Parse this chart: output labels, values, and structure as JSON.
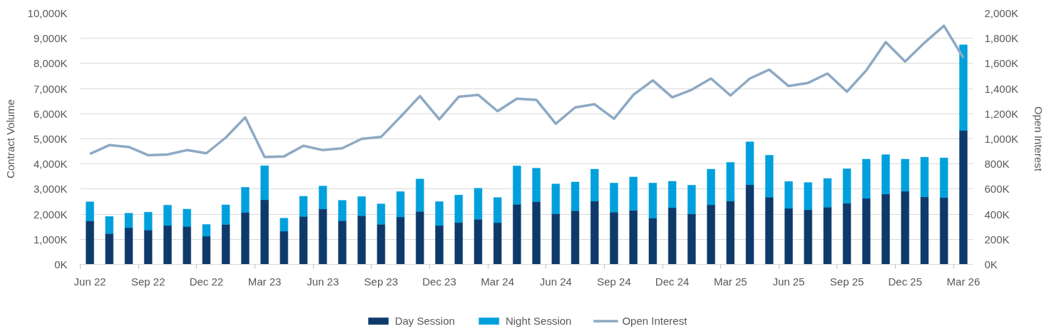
{
  "chart_data": {
    "type": "bar",
    "stacked": true,
    "categories": [
      "Jun 22",
      null,
      null,
      "Sep 22",
      null,
      null,
      "Dec 22",
      null,
      null,
      "Mar 23",
      null,
      null,
      "Jun 23",
      null,
      null,
      "Sep 23",
      null,
      null,
      "Dec 23",
      null,
      null,
      "Mar 24",
      null,
      null,
      "Jun 24",
      null,
      null,
      "Sep 24",
      null,
      null,
      "Dec 24",
      null,
      null,
      "Mar 25",
      null,
      null,
      "Jun 25",
      null,
      null,
      "Sep 25",
      null,
      null,
      "Dec 25",
      null,
      null,
      "Mar 26"
    ],
    "ylabel": "Contract Volume",
    "y2label": "Open Interest",
    "ylim": [
      0,
      10000
    ],
    "yticks": [
      {
        "value": 0,
        "label": "0K"
      },
      {
        "value": 1000,
        "label": "1,000K"
      },
      {
        "value": 2000,
        "label": "2,000K"
      },
      {
        "value": 3000,
        "label": "3,000K"
      },
      {
        "value": 4000,
        "label": "4,000K"
      },
      {
        "value": 5000,
        "label": "5,000K"
      },
      {
        "value": 6000,
        "label": "6,000K"
      },
      {
        "value": 7000,
        "label": "7,000K"
      },
      {
        "value": 8000,
        "label": "8,000K"
      },
      {
        "value": 9000,
        "label": "9,000K"
      },
      {
        "value": 10000,
        "label": "10,000K"
      }
    ],
    "y2lim": [
      0,
      2000
    ],
    "y2ticks": [
      {
        "value": 0,
        "label": "0K"
      },
      {
        "value": 200,
        "label": "200K"
      },
      {
        "value": 400,
        "label": "400K"
      },
      {
        "value": 600,
        "label": "600K"
      },
      {
        "value": 800,
        "label": "800K"
      },
      {
        "value": 1000,
        "label": "1,000K"
      },
      {
        "value": 1200,
        "label": "1,200K"
      },
      {
        "value": 1400,
        "label": "1,400K"
      },
      {
        "value": 1600,
        "label": "1,600K"
      },
      {
        "value": 1800,
        "label": "1,800K"
      },
      {
        "value": 2000,
        "label": "2,000K"
      }
    ],
    "series": [
      {
        "name": "Day Session",
        "color": "#0e3a6b",
        "values": [
          1730,
          1230,
          1460,
          1370,
          1550,
          1510,
          1120,
          1590,
          2070,
          2570,
          1320,
          1910,
          2210,
          1740,
          1940,
          1600,
          1890,
          2110,
          1550,
          1670,
          1800,
          1660,
          2390,
          2500,
          2020,
          2140,
          2520,
          2080,
          2150,
          1850,
          2260,
          2010,
          2370,
          2520,
          3170,
          2680,
          2230,
          2170,
          2280,
          2430,
          2630,
          2800,
          2910,
          2690,
          2660,
          5330
        ]
      },
      {
        "name": "Night Session",
        "color": "#00a0dc",
        "values": [
          760,
          680,
          580,
          710,
          810,
          690,
          470,
          780,
          1000,
          1360,
          520,
          800,
          910,
          810,
          760,
          810,
          1010,
          1290,
          950,
          1090,
          1230,
          1000,
          1530,
          1330,
          1180,
          1140,
          1270,
          1160,
          1330,
          1390,
          1050,
          1140,
          1420,
          1540,
          1710,
          1670,
          1070,
          1090,
          1140,
          1380,
          1560,
          1570,
          1280,
          1580,
          1580,
          3410
        ]
      },
      {
        "name": "Open Interest",
        "type": "line",
        "axis": "y2",
        "color": "#8da9c4",
        "line_style": "solid",
        "values": [
          880,
          950,
          935,
          870,
          875,
          910,
          885,
          1010,
          1170,
          855,
          860,
          945,
          910,
          925,
          1000,
          1015,
          1175,
          1340,
          1155,
          1335,
          1350,
          1220,
          1320,
          1310,
          1120,
          1250,
          1275,
          1160,
          1350,
          1465,
          1330,
          1390,
          1480,
          1345,
          1480,
          1550,
          1420,
          1445,
          1520,
          1375,
          1545,
          1770,
          1615,
          1765,
          1900,
          1645
        ]
      }
    ],
    "grid": "y",
    "legend": "bottom"
  }
}
